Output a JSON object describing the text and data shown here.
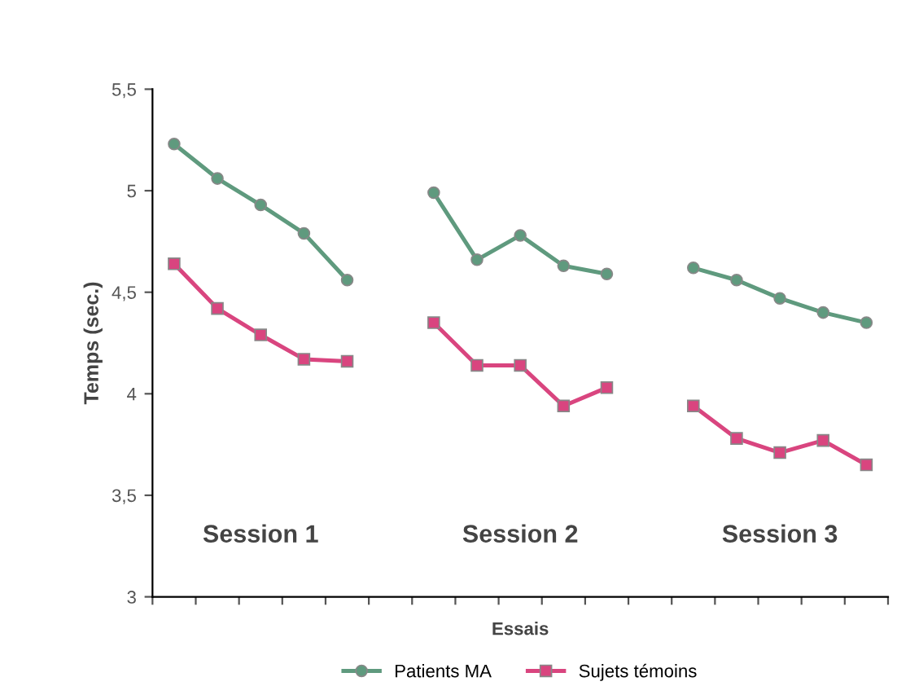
{
  "chart_data": {
    "type": "line",
    "xlabel": "Essais",
    "ylabel": "Temps (sec.)",
    "categories": [
      null,
      null,
      null,
      null,
      null,
      null,
      null,
      null,
      null,
      null,
      null,
      null,
      null,
      null,
      null,
      null,
      null
    ],
    "series": [
      {
        "name": "Patients MA",
        "color": "#5f9a7e",
        "marker": "circle",
        "values": [
          5.23,
          5.06,
          4.93,
          4.79,
          4.56,
          null,
          4.99,
          4.66,
          4.78,
          4.63,
          4.59,
          null,
          4.62,
          4.56,
          4.47,
          4.4,
          4.35
        ]
      },
      {
        "name": "Sujets témoins",
        "color": "#d9457f",
        "marker": "square",
        "values": [
          4.64,
          4.42,
          4.29,
          4.17,
          4.16,
          null,
          4.35,
          4.14,
          4.14,
          3.94,
          4.03,
          null,
          3.94,
          3.78,
          3.71,
          3.77,
          3.65
        ]
      }
    ],
    "ylim": [
      3,
      5.5
    ],
    "yticks": [
      3,
      {
        "value": 3.5,
        "label": "3,5"
      },
      4,
      {
        "value": 4.5,
        "label": "4,5"
      },
      5,
      {
        "value": 5.5,
        "label": "5,5"
      }
    ],
    "annotations": [
      "Session 1",
      "Session 2",
      "Session 3"
    ],
    "grid": false,
    "legend": "bottom",
    "line_style": "solid"
  }
}
